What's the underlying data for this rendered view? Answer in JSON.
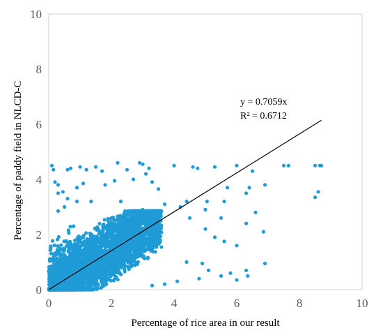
{
  "chart_data": {
    "type": "scatter",
    "title": "",
    "xlabel": "Percentage  of rice area in our result",
    "ylabel": "Percentage  of paddy field in NLCD-C",
    "xlim": [
      0,
      10
    ],
    "ylim": [
      0,
      10
    ],
    "x_ticks": [
      "0",
      "2",
      "4",
      "6",
      "8",
      "10"
    ],
    "y_ticks": [
      "0",
      "2",
      "4",
      "6",
      "8",
      "10"
    ],
    "grid": false,
    "legend": "none",
    "point_color": "#1f9bd7",
    "trendline": {
      "slope": 0.7059,
      "intercept": 0,
      "x_range": [
        0,
        8.7
      ],
      "equation": "y = 0.7059x",
      "r_squared": "R² = 0.6712",
      "color": "#000000"
    },
    "cluster": {
      "description_note": "",
      "n": 3200
    },
    "points": [
      [
        0.1,
        4.5
      ],
      [
        0.15,
        4.35
      ],
      [
        0.2,
        3.9
      ],
      [
        0.3,
        3.5
      ],
      [
        0.45,
        3.55
      ],
      [
        0.5,
        3.0
      ],
      [
        0.6,
        4.35
      ],
      [
        0.7,
        4.4
      ],
      [
        0.9,
        3.7
      ],
      [
        1.0,
        4.45
      ],
      [
        1.2,
        4.35
      ],
      [
        1.5,
        4.45
      ],
      [
        1.7,
        4.3
      ],
      [
        2.2,
        4.6
      ],
      [
        2.5,
        4.35
      ],
      [
        2.9,
        4.6
      ],
      [
        3.0,
        4.55
      ],
      [
        3.1,
        4.2
      ],
      [
        3.2,
        4.4
      ],
      [
        4.0,
        4.5
      ],
      [
        4.6,
        4.45
      ],
      [
        4.75,
        4.4
      ],
      [
        5.3,
        4.45
      ],
      [
        6.0,
        4.5
      ],
      [
        6.5,
        4.3
      ],
      [
        7.5,
        4.5
      ],
      [
        7.65,
        4.5
      ],
      [
        8.5,
        4.5
      ],
      [
        8.65,
        4.5
      ],
      [
        8.7,
        4.5
      ],
      [
        0.3,
        3.8
      ],
      [
        0.6,
        3.3
      ],
      [
        1.1,
        3.85
      ],
      [
        1.8,
        3.8
      ],
      [
        2.1,
        3.95
      ],
      [
        2.7,
        4.0
      ],
      [
        3.5,
        3.65
      ],
      [
        3.3,
        3.9
      ],
      [
        5.7,
        3.7
      ],
      [
        6.4,
        3.7
      ],
      [
        6.9,
        3.8
      ],
      [
        8.5,
        3.35
      ],
      [
        8.6,
        3.55
      ],
      [
        0.9,
        3.2
      ],
      [
        3.7,
        3.1
      ],
      [
        4.4,
        3.2
      ],
      [
        4.2,
        3.0
      ],
      [
        5.05,
        3.2
      ],
      [
        5.6,
        3.2
      ],
      [
        6.3,
        3.5
      ],
      [
        6.6,
        2.8
      ],
      [
        4.5,
        2.6
      ],
      [
        5.0,
        2.2
      ],
      [
        5.5,
        2.6
      ],
      [
        6.3,
        2.4
      ],
      [
        6.85,
        2.1
      ],
      [
        5.0,
        2.9
      ],
      [
        3.0,
        2.9
      ],
      [
        0.3,
        2.85
      ],
      [
        1.35,
        3.2
      ],
      [
        2.3,
        3.2
      ],
      [
        5.3,
        1.9
      ],
      [
        5.6,
        1.75
      ],
      [
        6.0,
        1.6
      ],
      [
        4.9,
        0.95
      ],
      [
        5.8,
        0.6
      ],
      [
        6.3,
        0.7
      ],
      [
        6.0,
        0.35
      ],
      [
        5.5,
        0.5
      ],
      [
        5.1,
        0.7
      ],
      [
        6.9,
        0.95
      ],
      [
        6.35,
        0.5
      ],
      [
        4.4,
        1.0
      ],
      [
        4.8,
        0.4
      ],
      [
        3.7,
        0.2
      ],
      [
        3.3,
        0.15
      ],
      [
        4.1,
        0.3
      ]
    ]
  }
}
